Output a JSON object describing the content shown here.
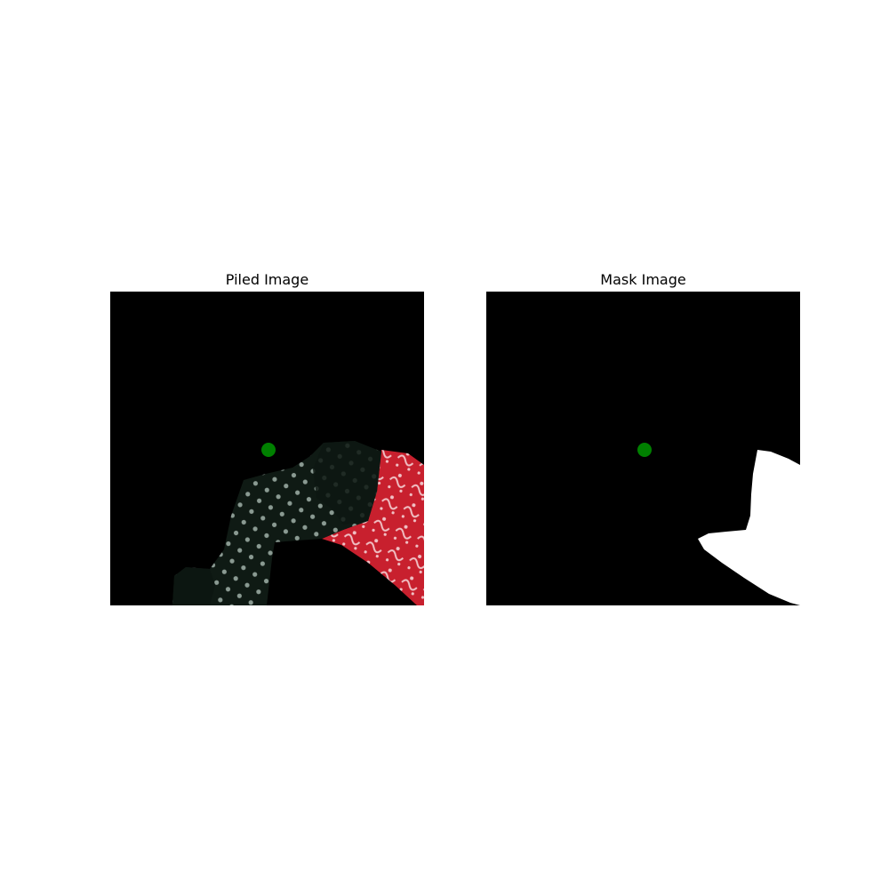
{
  "figure": {
    "left_panel": {
      "title": "Piled Image"
    },
    "right_panel": {
      "title": "Mask Image"
    }
  },
  "colors": {
    "background": "#000000",
    "marker": "#008000",
    "mask_foreground": "#ffffff",
    "polka_cloth": "#0f1a14",
    "polka_dots": "#8a9a92",
    "red_cloth": "#c8202e"
  },
  "marker": {
    "label": "",
    "shape": "circle"
  }
}
